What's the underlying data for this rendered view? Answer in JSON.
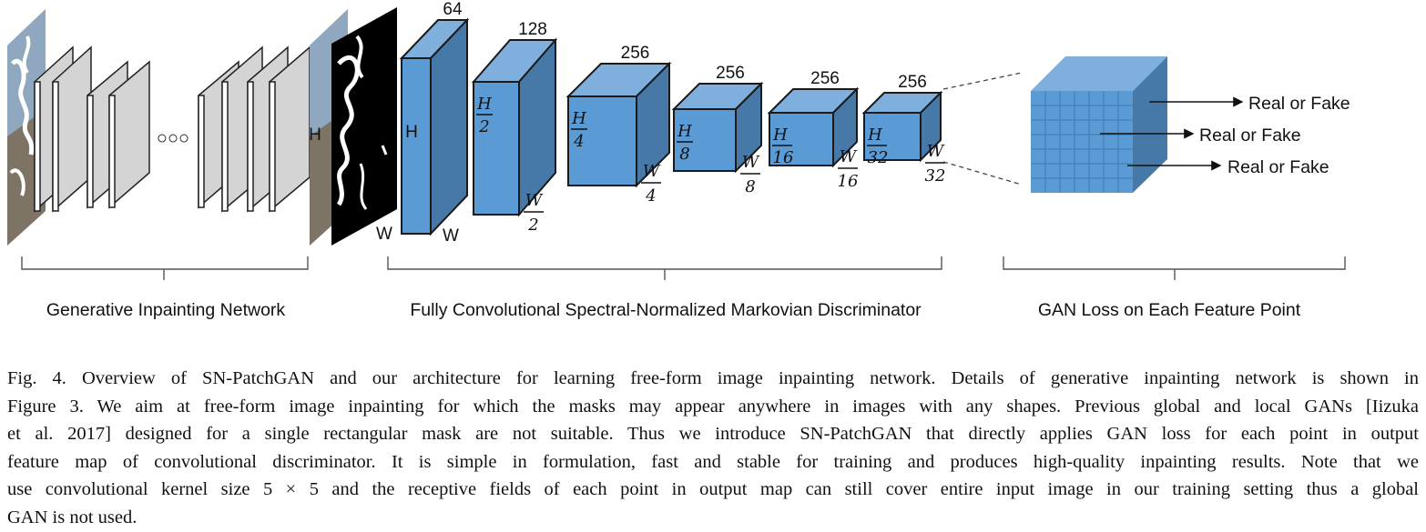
{
  "colors": {
    "cube_front": "#5b9bd5",
    "cube_top": "#7fb0dd",
    "cube_side": "#4679a8",
    "layer_gray": "#d4d4d4"
  },
  "generator": {
    "label": "Generative Inpainting Network",
    "ellipsis": "○○○",
    "input_h": "H",
    "input_w": "W"
  },
  "discriminator": {
    "label": "Fully Convolutional Spectral-Normalized Markovian Discriminator",
    "layers": [
      {
        "channels": "64",
        "h_num": "H",
        "h_den": "",
        "w_num": "W",
        "w_den": ""
      },
      {
        "channels": "128",
        "h_num": "H",
        "h_den": "2",
        "w_num": "W",
        "w_den": "2"
      },
      {
        "channels": "256",
        "h_num": "H",
        "h_den": "4",
        "w_num": "W",
        "w_den": "4"
      },
      {
        "channels": "256",
        "h_num": "H",
        "h_den": "8",
        "w_num": "W",
        "w_den": "8"
      },
      {
        "channels": "256",
        "h_num": "H",
        "h_den": "16",
        "w_num": "W",
        "w_den": "16"
      },
      {
        "channels": "256",
        "h_num": "H",
        "h_den": "32",
        "w_num": "W",
        "w_den": "32"
      }
    ]
  },
  "gan_loss": {
    "label": "GAN Loss on Each Feature Point",
    "outputs": [
      "Real or Fake",
      "Real or Fake",
      "Real or Fake"
    ]
  },
  "caption": {
    "lines": [
      "Fig. 4.  Overview of SN-PatchGAN and our architecture for learning free-form image inpainting network. Details of generative inpainting network is shown in",
      "Figure 3. We aim at free-form image inpainting for which the masks may appear anywhere in images with any shapes. Previous global and local GANs [Iizuka",
      "et al. 2017] designed for a single rectangular mask are not suitable. Thus we introduce SN-PatchGAN that directly applies GAN loss for each point in output",
      "feature map of convolutional discriminator. It is simple in formulation, fast and stable for training and produces high-quality inpainting results. Note that we",
      "use convolutional kernel size 5 × 5 and the receptive fields of each point in output map can still cover entire input image in our training setting thus a global",
      "GAN is not used."
    ]
  }
}
